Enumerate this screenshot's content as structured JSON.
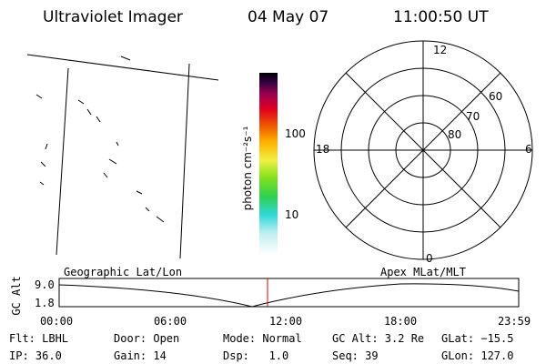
{
  "header": {
    "title": "Ultraviolet Imager",
    "date": "04 May 07",
    "time": "11:00:50 UT"
  },
  "colorbar": {
    "label": "photon cm⁻²s⁻¹",
    "ticks": [
      "100",
      "10"
    ]
  },
  "polar": {
    "labels": [
      "12",
      "18",
      "6",
      "0",
      "60",
      "70",
      "80"
    ]
  },
  "altitude": {
    "title_left": "Geographic Lat/Lon",
    "title_right": "Apex MLat/MLT",
    "axis_label": "GC Alt",
    "yticks": [
      "9.0",
      "1.8"
    ],
    "xticks": [
      "00:00",
      "06:00",
      "12:00",
      "18:00",
      "23:59"
    ]
  },
  "info": {
    "rows": [
      [
        "Flt: LBHL",
        "Door: Open",
        "Mode: Normal",
        "GC Alt: 3.2 Re",
        "GLat: −15.5"
      ],
      [
        "IP: 36.0",
        "Gain: 14",
        "Dsp:   1.0",
        "Seq: 39",
        "GLon: 127.0"
      ]
    ]
  }
}
